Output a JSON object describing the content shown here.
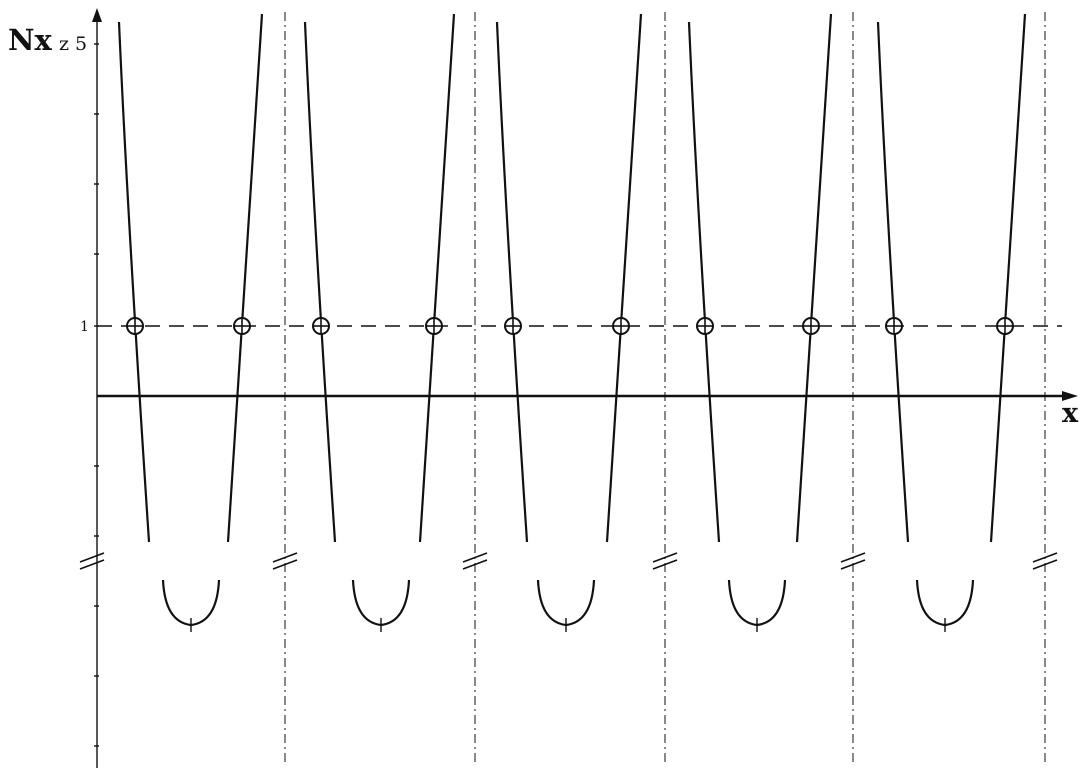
{
  "figure": {
    "y_axis_label": "Nx",
    "y_axis_label_sub": "z 5",
    "x_axis_label": "x",
    "unity_tick_label": "1"
  },
  "chart_data": {
    "type": "line",
    "title": "",
    "xlabel": "x",
    "ylabel": "Nx z 5",
    "unity_level": 1,
    "axis_break": true,
    "periods": 5,
    "crossings_per_period": 2,
    "crossing_marker": "circle-plus",
    "reference_line_style": "dashed",
    "divider_line_style": "dash-dot",
    "grid": false
  },
  "colors": {
    "ink": "#111111",
    "background": "#ffffff"
  }
}
